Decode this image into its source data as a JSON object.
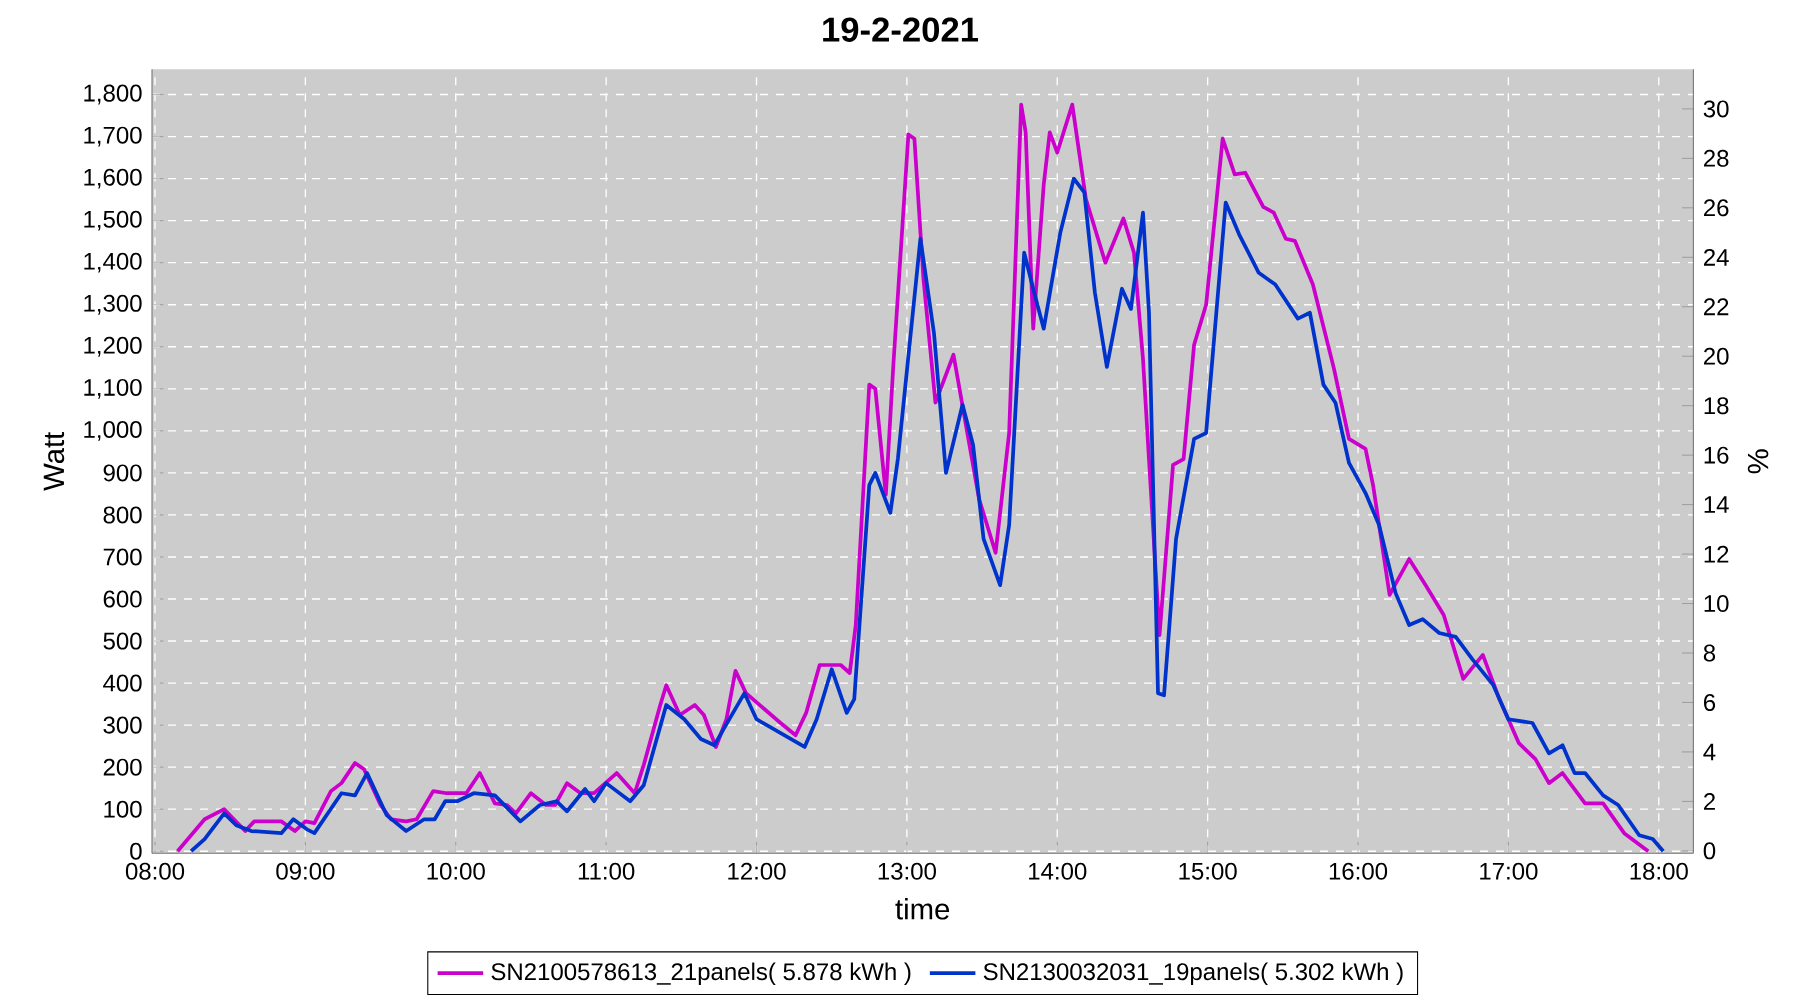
{
  "chart_data": {
    "type": "line",
    "title": "19-2-2021",
    "xlabel": "time",
    "ylabel": "Watt",
    "y2label": "%",
    "xlim": [
      7.98,
      18.23
    ],
    "xticks": [
      {
        "value": 8,
        "label": "08:00"
      },
      {
        "value": 9,
        "label": "09:00"
      },
      {
        "value": 10,
        "label": "10:00"
      },
      {
        "value": 11,
        "label": "11:00"
      },
      {
        "value": 12,
        "label": "12:00"
      },
      {
        "value": 13,
        "label": "13:00"
      },
      {
        "value": 14,
        "label": "14:00"
      },
      {
        "value": 15,
        "label": "15:00"
      },
      {
        "value": 16,
        "label": "16:00"
      },
      {
        "value": 17,
        "label": "17:00"
      },
      {
        "value": 18,
        "label": "18:00"
      }
    ],
    "ylim": [
      -5,
      1860
    ],
    "yticks": [
      0,
      100,
      200,
      300,
      400,
      500,
      600,
      700,
      800,
      900,
      {
        "value": 1000,
        "label": "1,000"
      },
      {
        "value": 1100,
        "label": "1,100"
      },
      {
        "value": 1200,
        "label": "1,200"
      },
      {
        "value": 1300,
        "label": "1,300"
      },
      {
        "value": 1400,
        "label": "1,400"
      },
      {
        "value": 1500,
        "label": "1,500"
      },
      {
        "value": 1600,
        "label": "1,600"
      },
      {
        "value": 1700,
        "label": "1,700"
      },
      {
        "value": 1800,
        "label": "1,800"
      }
    ],
    "y2lim": [
      -0.1,
      31.6
    ],
    "y2ticks": [
      0,
      2,
      4,
      6,
      8,
      10,
      12,
      14,
      16,
      18,
      20,
      22,
      24,
      26,
      28,
      30
    ],
    "grid": true,
    "legend": "bottom",
    "series": [
      {
        "name": "SN2100578613_21panels( 5.878 kWh )",
        "color": "#cc00cc",
        "x": [
          8.15,
          8.33,
          8.46,
          8.6,
          8.66,
          8.84,
          8.93,
          9.0,
          9.06,
          9.17,
          9.24,
          9.33,
          9.39,
          9.5,
          9.57,
          9.67,
          9.74,
          9.85,
          9.94,
          10.07,
          10.16,
          10.26,
          10.34,
          10.4,
          10.5,
          10.6,
          10.66,
          10.74,
          10.83,
          10.92,
          11.07,
          11.19,
          11.25,
          11.36,
          11.4,
          11.49,
          11.59,
          11.65,
          11.73,
          11.8,
          11.86,
          11.93,
          12.02,
          12.16,
          12.26,
          12.33,
          12.42,
          12.56,
          12.62,
          12.66,
          12.75,
          12.79,
          12.86,
          12.91,
          13.01,
          13.05,
          13.11,
          13.19,
          13.31,
          13.39,
          13.48,
          13.59,
          13.68,
          13.76,
          13.79,
          13.84,
          13.91,
          13.95,
          14.0,
          14.1,
          14.19,
          14.32,
          14.44,
          14.51,
          14.57,
          14.68,
          14.77,
          14.84,
          14.91,
          14.99,
          15.1,
          15.18,
          15.25,
          15.37,
          15.44,
          15.52,
          15.58,
          15.7,
          15.84,
          15.94,
          16.05,
          16.1,
          16.21,
          16.34,
          16.45,
          16.57,
          16.7,
          16.83,
          16.94,
          17.07,
          17.18,
          17.27,
          17.36,
          17.51,
          17.63,
          17.77,
          17.93
        ],
        "values": [
          0,
          76,
          100,
          48,
          71,
          71,
          48,
          71,
          67,
          143,
          162,
          210,
          195,
          110,
          76,
          71,
          76,
          143,
          138,
          138,
          186,
          114,
          110,
          90,
          138,
          110,
          110,
          162,
          138,
          138,
          186,
          138,
          205,
          348,
          395,
          324,
          348,
          324,
          248,
          314,
          429,
          376,
          348,
          305,
          276,
          329,
          443,
          443,
          424,
          538,
          1110,
          1100,
          848,
          1157,
          1705,
          1695,
          1362,
          1067,
          1181,
          1019,
          838,
          710,
          995,
          1776,
          1710,
          1243,
          1586,
          1710,
          1662,
          1776,
          1552,
          1400,
          1505,
          1424,
          1171,
          514,
          919,
          933,
          1205,
          1300,
          1695,
          1610,
          1614,
          1533,
          1519,
          1457,
          1452,
          1348,
          1148,
          981,
          957,
          871,
          610,
          695,
          633,
          562,
          410,
          467,
          362,
          257,
          219,
          162,
          186,
          114,
          114,
          43,
          0
        ]
      },
      {
        "name": "SN2130032031_19panels( 5.302 kWh )",
        "color": "#0033cc",
        "x": [
          8.24,
          8.33,
          8.46,
          8.54,
          8.64,
          8.84,
          8.92,
          9.01,
          9.06,
          9.24,
          9.33,
          9.41,
          9.54,
          9.67,
          9.79,
          9.86,
          9.93,
          10.01,
          10.12,
          10.26,
          10.43,
          10.56,
          10.67,
          10.74,
          10.86,
          10.92,
          11.0,
          11.16,
          11.25,
          11.4,
          11.52,
          11.63,
          11.72,
          11.78,
          11.92,
          12.0,
          12.16,
          12.32,
          12.4,
          12.5,
          12.6,
          12.65,
          12.75,
          12.79,
          12.89,
          12.94,
          13.09,
          13.18,
          13.26,
          13.37,
          13.44,
          13.51,
          13.62,
          13.68,
          13.78,
          13.84,
          13.91,
          14.02,
          14.11,
          14.18,
          14.25,
          14.33,
          14.43,
          14.49,
          14.57,
          14.61,
          14.67,
          14.71,
          14.79,
          14.91,
          14.99,
          15.12,
          15.21,
          15.34,
          15.45,
          15.6,
          15.68,
          15.77,
          15.85,
          15.94,
          16.05,
          16.14,
          16.25,
          16.34,
          16.43,
          16.54,
          16.65,
          16.76,
          16.9,
          17.0,
          17.16,
          17.27,
          17.36,
          17.44,
          17.51,
          17.63,
          17.73,
          17.87,
          17.96,
          18.03
        ],
        "values": [
          0,
          29,
          90,
          62,
          48,
          43,
          76,
          52,
          43,
          138,
          133,
          186,
          86,
          48,
          76,
          76,
          119,
          119,
          138,
          133,
          71,
          110,
          119,
          95,
          148,
          119,
          162,
          119,
          157,
          348,
          314,
          267,
          252,
          290,
          376,
          314,
          281,
          248,
          314,
          433,
          329,
          362,
          871,
          900,
          805,
          933,
          1457,
          1233,
          900,
          1062,
          967,
          743,
          633,
          776,
          1424,
          1338,
          1243,
          1471,
          1600,
          1567,
          1329,
          1152,
          1338,
          1290,
          1519,
          1281,
          376,
          371,
          743,
          981,
          995,
          1543,
          1467,
          1376,
          1348,
          1267,
          1281,
          1110,
          1067,
          924,
          852,
          776,
          614,
          538,
          552,
          519,
          510,
          457,
          395,
          314,
          305,
          233,
          252,
          186,
          186,
          133,
          110,
          38,
          29,
          0
        ]
      }
    ]
  }
}
